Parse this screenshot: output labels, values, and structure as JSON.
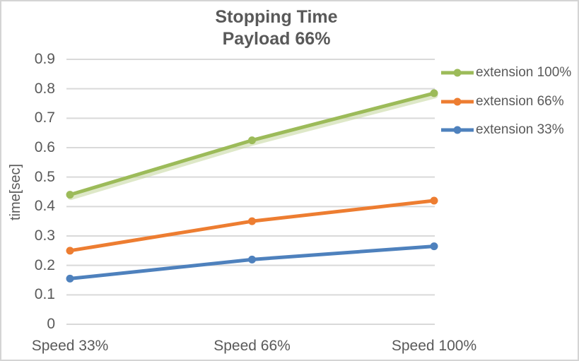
{
  "chart_data": {
    "type": "line",
    "title": "Stopping Time",
    "subtitle": "Payload 66%",
    "ylabel": "time[sec]",
    "xlabel": "",
    "categories": [
      "Speed 33%",
      "Speed 66%",
      "Speed 100%"
    ],
    "series": [
      {
        "name": "extension 100%",
        "color": "#9CBB59",
        "glow": true,
        "values": [
          0.44,
          0.625,
          0.785
        ]
      },
      {
        "name": "extension 66%",
        "color": "#ED7D31",
        "glow": false,
        "values": [
          0.25,
          0.35,
          0.42
        ]
      },
      {
        "name": "extension 33%",
        "color": "#4E81BD",
        "glow": false,
        "values": [
          0.155,
          0.22,
          0.265
        ]
      }
    ],
    "ylim": [
      0,
      0.9
    ],
    "y_tick_step": 0.1,
    "y_tick_labels": [
      "0",
      "0.1",
      "0.2",
      "0.3",
      "0.4",
      "0.5",
      "0.6",
      "0.7",
      "0.8",
      "0.9"
    ],
    "grid": true,
    "legend_position": "right",
    "colors": {
      "text": "#595959",
      "gridline": "#D9D9D9",
      "background": "#FFFFFF",
      "border": "#D4D4D4",
      "glow_green": "#C2D69B"
    }
  }
}
